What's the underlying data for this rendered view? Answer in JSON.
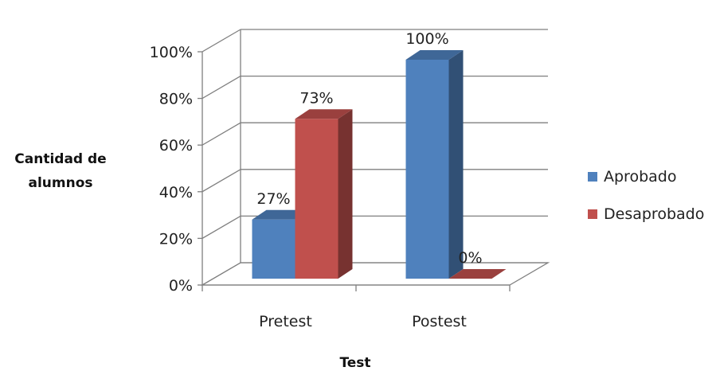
{
  "chart_data": {
    "type": "bar",
    "title": "",
    "xlabel": "Test",
    "ylabel": "Cantidad de alumnos",
    "ylim": [
      0,
      100
    ],
    "yticks": [
      "0%",
      "20%",
      "40%",
      "60%",
      "80%",
      "100%"
    ],
    "categories": [
      "Pretest",
      "Postest"
    ],
    "series": [
      {
        "name": "Aprobado",
        "values": [
          27,
          100
        ],
        "labels": [
          "27%",
          "100%"
        ],
        "color": "#4F81BD"
      },
      {
        "name": "Desaprobado",
        "values": [
          73,
          0
        ],
        "labels": [
          "73%",
          "0%"
        ],
        "color": "#C0504D"
      }
    ],
    "grid": true,
    "legend": "right",
    "style": "3d-clustered-column"
  }
}
